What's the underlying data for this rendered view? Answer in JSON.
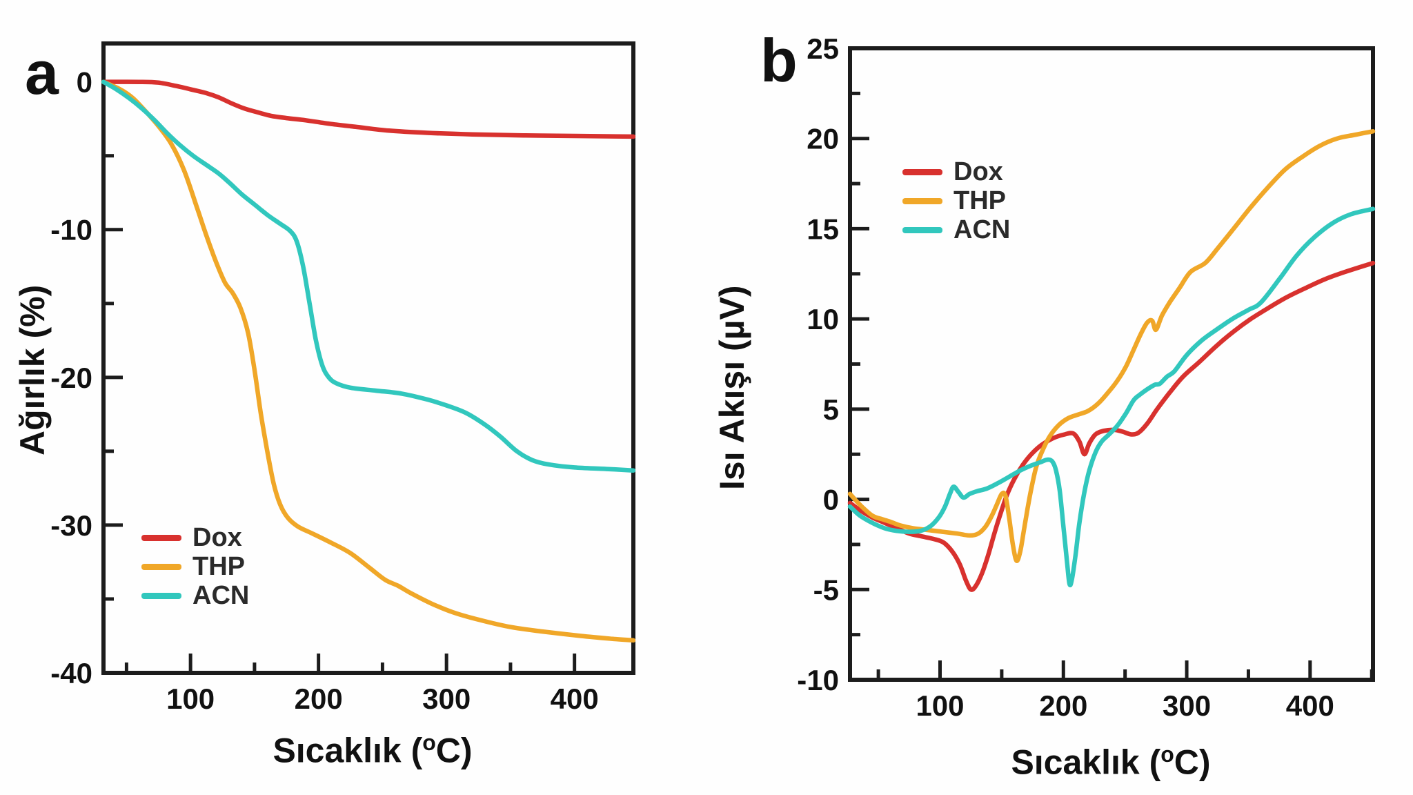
{
  "figure": {
    "background": "#fefefe",
    "axis_color": "#1c1c1c"
  },
  "chart_data": [
    {
      "type": "line",
      "panel_label": "a",
      "xlabel_pre": "Sıcaklık (",
      "xlabel_deg": "o",
      "xlabel_post": "C)",
      "ylabel": "Ağırlık (%)",
      "xlim": [
        32,
        446
      ],
      "ylim": [
        -40,
        2.6
      ],
      "x_major_ticks": [
        100,
        200,
        300,
        400
      ],
      "x_minor_ticks": [
        50,
        150,
        250,
        350
      ],
      "y_major_ticks": [
        0,
        -10,
        -20,
        -30,
        -40
      ],
      "y_minor_ticks": [
        -5,
        -15,
        -25,
        -35
      ],
      "legend_position": "lower-left",
      "grid": false,
      "series": [
        {
          "name": "Dox",
          "color": "#d8312e",
          "points": [
            [
              32,
              0
            ],
            [
              60,
              0
            ],
            [
              75,
              -0.05
            ],
            [
              90,
              -0.3
            ],
            [
              100,
              -0.5
            ],
            [
              112,
              -0.75
            ],
            [
              122,
              -1.05
            ],
            [
              132,
              -1.45
            ],
            [
              142,
              -1.8
            ],
            [
              152,
              -2.05
            ],
            [
              163,
              -2.3
            ],
            [
              175,
              -2.45
            ],
            [
              190,
              -2.6
            ],
            [
              210,
              -2.85
            ],
            [
              230,
              -3.05
            ],
            [
              255,
              -3.3
            ],
            [
              285,
              -3.45
            ],
            [
              320,
              -3.55
            ],
            [
              360,
              -3.62
            ],
            [
              400,
              -3.66
            ],
            [
              446,
              -3.7
            ]
          ]
        },
        {
          "name": "THP",
          "color": "#f0a728",
          "points": [
            [
              32,
              0
            ],
            [
              45,
              -0.5
            ],
            [
              55,
              -1.1
            ],
            [
              65,
              -2.0
            ],
            [
              75,
              -3.0
            ],
            [
              85,
              -4.2
            ],
            [
              95,
              -6.0
            ],
            [
              105,
              -8.5
            ],
            [
              112,
              -10.3
            ],
            [
              120,
              -12.2
            ],
            [
              127,
              -13.6
            ],
            [
              133,
              -14.3
            ],
            [
              139,
              -15.3
            ],
            [
              145,
              -17.0
            ],
            [
              150,
              -19.5
            ],
            [
              155,
              -22.5
            ],
            [
              160,
              -25.0
            ],
            [
              165,
              -27.2
            ],
            [
              170,
              -28.6
            ],
            [
              176,
              -29.5
            ],
            [
              184,
              -30.1
            ],
            [
              196,
              -30.6
            ],
            [
              210,
              -31.2
            ],
            [
              225,
              -31.9
            ],
            [
              240,
              -32.9
            ],
            [
              252,
              -33.7
            ],
            [
              262,
              -34.1
            ],
            [
              272,
              -34.6
            ],
            [
              288,
              -35.3
            ],
            [
              305,
              -35.9
            ],
            [
              325,
              -36.4
            ],
            [
              350,
              -36.9
            ],
            [
              375,
              -37.2
            ],
            [
              405,
              -37.5
            ],
            [
              430,
              -37.7
            ],
            [
              446,
              -37.8
            ]
          ]
        },
        {
          "name": "ACN",
          "color": "#31c7bd",
          "points": [
            [
              32,
              0
            ],
            [
              42,
              -0.5
            ],
            [
              52,
              -1.1
            ],
            [
              62,
              -1.8
            ],
            [
              72,
              -2.6
            ],
            [
              82,
              -3.5
            ],
            [
              92,
              -4.3
            ],
            [
              102,
              -5.0
            ],
            [
              112,
              -5.6
            ],
            [
              122,
              -6.2
            ],
            [
              130,
              -6.8
            ],
            [
              140,
              -7.6
            ],
            [
              150,
              -8.3
            ],
            [
              160,
              -9.0
            ],
            [
              170,
              -9.6
            ],
            [
              178,
              -10.1
            ],
            [
              183,
              -10.8
            ],
            [
              188,
              -12.5
            ],
            [
              193,
              -15.0
            ],
            [
              198,
              -17.5
            ],
            [
              203,
              -19.2
            ],
            [
              208,
              -20.0
            ],
            [
              214,
              -20.4
            ],
            [
              225,
              -20.7
            ],
            [
              245,
              -20.9
            ],
            [
              265,
              -21.1
            ],
            [
              285,
              -21.5
            ],
            [
              300,
              -21.9
            ],
            [
              315,
              -22.4
            ],
            [
              330,
              -23.2
            ],
            [
              342,
              -24.0
            ],
            [
              355,
              -25.0
            ],
            [
              367,
              -25.6
            ],
            [
              380,
              -25.9
            ],
            [
              400,
              -26.1
            ],
            [
              425,
              -26.2
            ],
            [
              446,
              -26.3
            ]
          ]
        }
      ]
    },
    {
      "type": "line",
      "panel_label": "b",
      "xlabel_pre": "Sıcaklık (",
      "xlabel_deg": "o",
      "xlabel_post": "C)",
      "ylabel": "Isı Akışı (µV)",
      "xlim": [
        27,
        451
      ],
      "ylim": [
        -10,
        25
      ],
      "x_major_ticks": [
        100,
        200,
        300,
        400
      ],
      "x_minor_ticks": [
        50,
        150,
        250,
        350,
        450
      ],
      "y_major_ticks": [
        25,
        20,
        15,
        10,
        5,
        0,
        -5,
        -10
      ],
      "y_minor_ticks": [
        22.5,
        17.5,
        12.5,
        7.5,
        2.5,
        -2.5,
        -7.5
      ],
      "legend_position": "upper-left",
      "grid": false,
      "series": [
        {
          "name": "Dox",
          "color": "#d8312e",
          "points": [
            [
              27,
              -0.2
            ],
            [
              35,
              -0.6
            ],
            [
              45,
              -1.0
            ],
            [
              55,
              -1.3
            ],
            [
              65,
              -1.6
            ],
            [
              75,
              -1.9
            ],
            [
              85,
              -2.05
            ],
            [
              95,
              -2.2
            ],
            [
              103,
              -2.4
            ],
            [
              110,
              -2.9
            ],
            [
              116,
              -3.6
            ],
            [
              121,
              -4.5
            ],
            [
              125,
              -5.0
            ],
            [
              129,
              -4.8
            ],
            [
              134,
              -4.1
            ],
            [
              139,
              -3.1
            ],
            [
              144,
              -1.9
            ],
            [
              149,
              -0.8
            ],
            [
              154,
              0.2
            ],
            [
              160,
              1.1
            ],
            [
              167,
              1.9
            ],
            [
              174,
              2.5
            ],
            [
              182,
              3.0
            ],
            [
              192,
              3.4
            ],
            [
              201,
              3.6
            ],
            [
              208,
              3.65
            ],
            [
              213,
              3.2
            ],
            [
              217,
              2.5
            ],
            [
              221,
              3.1
            ],
            [
              226,
              3.6
            ],
            [
              233,
              3.8
            ],
            [
              241,
              3.85
            ],
            [
              248,
              3.75
            ],
            [
              255,
              3.6
            ],
            [
              261,
              3.7
            ],
            [
              268,
              4.2
            ],
            [
              276,
              5.0
            ],
            [
              286,
              5.9
            ],
            [
              297,
              6.8
            ],
            [
              310,
              7.6
            ],
            [
              324,
              8.5
            ],
            [
              338,
              9.3
            ],
            [
              352,
              10.0
            ],
            [
              366,
              10.6
            ],
            [
              381,
              11.2
            ],
            [
              396,
              11.7
            ],
            [
              412,
              12.2
            ],
            [
              428,
              12.6
            ],
            [
              451,
              13.1
            ]
          ]
        },
        {
          "name": "THP",
          "color": "#f0a728",
          "points": [
            [
              27,
              0.3
            ],
            [
              35,
              -0.3
            ],
            [
              45,
              -0.9
            ],
            [
              53,
              -1.1
            ],
            [
              60,
              -1.25
            ],
            [
              68,
              -1.45
            ],
            [
              78,
              -1.6
            ],
            [
              90,
              -1.7
            ],
            [
              102,
              -1.8
            ],
            [
              114,
              -1.9
            ],
            [
              124,
              -2.0
            ],
            [
              131,
              -1.9
            ],
            [
              137,
              -1.5
            ],
            [
              142,
              -0.9
            ],
            [
              146,
              -0.3
            ],
            [
              150,
              0.3
            ],
            [
              153,
              0.2
            ],
            [
              156,
              -1.0
            ],
            [
              159,
              -2.5
            ],
            [
              162,
              -3.4
            ],
            [
              165,
              -2.9
            ],
            [
              168,
              -1.7
            ],
            [
              171,
              -0.5
            ],
            [
              174,
              0.6
            ],
            [
              178,
              1.8
            ],
            [
              183,
              2.7
            ],
            [
              189,
              3.5
            ],
            [
              196,
              4.1
            ],
            [
              204,
              4.5
            ],
            [
              212,
              4.7
            ],
            [
              220,
              4.9
            ],
            [
              228,
              5.3
            ],
            [
              236,
              5.9
            ],
            [
              244,
              6.6
            ],
            [
              251,
              7.4
            ],
            [
              257,
              8.3
            ],
            [
              263,
              9.2
            ],
            [
              268,
              9.8
            ],
            [
              272,
              9.9
            ],
            [
              275,
              9.4
            ],
            [
              280,
              10.2
            ],
            [
              286,
              10.9
            ],
            [
              294,
              11.7
            ],
            [
              303,
              12.6
            ],
            [
              315,
              13.1
            ],
            [
              325,
              13.9
            ],
            [
              338,
              15.0
            ],
            [
              352,
              16.2
            ],
            [
              366,
              17.3
            ],
            [
              380,
              18.3
            ],
            [
              394,
              19.0
            ],
            [
              408,
              19.6
            ],
            [
              422,
              20.0
            ],
            [
              436,
              20.2
            ],
            [
              451,
              20.4
            ]
          ]
        },
        {
          "name": "ACN",
          "color": "#31c7bd",
          "points": [
            [
              27,
              -0.4
            ],
            [
              35,
              -0.9
            ],
            [
              45,
              -1.3
            ],
            [
              55,
              -1.6
            ],
            [
              65,
              -1.75
            ],
            [
              75,
              -1.8
            ],
            [
              84,
              -1.75
            ],
            [
              92,
              -1.5
            ],
            [
              99,
              -1.0
            ],
            [
              104,
              -0.4
            ],
            [
              108,
              0.3
            ],
            [
              111,
              0.7
            ],
            [
              115,
              0.4
            ],
            [
              119,
              0.1
            ],
            [
              124,
              0.3
            ],
            [
              130,
              0.45
            ],
            [
              138,
              0.6
            ],
            [
              147,
              0.9
            ],
            [
              156,
              1.25
            ],
            [
              165,
              1.6
            ],
            [
              173,
              1.85
            ],
            [
              181,
              2.05
            ],
            [
              187,
              2.2
            ],
            [
              191,
              2.1
            ],
            [
              194,
              1.6
            ],
            [
              197,
              0.5
            ],
            [
              200,
              -1.5
            ],
            [
              203,
              -3.5
            ],
            [
              205,
              -4.7
            ],
            [
              207,
              -4.4
            ],
            [
              210,
              -3.0
            ],
            [
              213,
              -1.3
            ],
            [
              217,
              0.4
            ],
            [
              221,
              1.6
            ],
            [
              226,
              2.6
            ],
            [
              231,
              3.2
            ],
            [
              237,
              3.6
            ],
            [
              244,
              4.1
            ],
            [
              251,
              4.8
            ],
            [
              257,
              5.5
            ],
            [
              262,
              5.8
            ],
            [
              268,
              6.1
            ],
            [
              274,
              6.35
            ],
            [
              278,
              6.4
            ],
            [
              284,
              6.8
            ],
            [
              290,
              7.1
            ],
            [
              300,
              8.0
            ],
            [
              312,
              8.8
            ],
            [
              324,
              9.4
            ],
            [
              337,
              10.0
            ],
            [
              350,
              10.5
            ],
            [
              360,
              10.9
            ],
            [
              375,
              12.2
            ],
            [
              389,
              13.5
            ],
            [
              403,
              14.5
            ],
            [
              418,
              15.3
            ],
            [
              433,
              15.8
            ],
            [
              451,
              16.1
            ]
          ]
        }
      ]
    }
  ]
}
